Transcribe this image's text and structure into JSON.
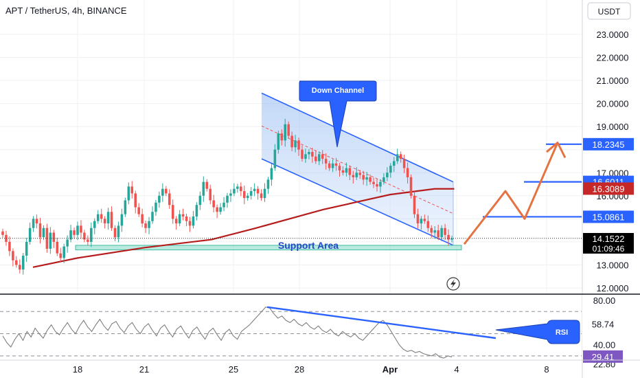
{
  "header": {
    "title": "APT / TetherUS, 4h, BINANCE"
  },
  "currency_button": "USDT",
  "price_axis": {
    "ticks": [
      "23.0000",
      "22.0000",
      "21.0000",
      "20.0000",
      "19.0000",
      "17.0000",
      "16.0000",
      "13.0000",
      "12.0000"
    ],
    "tick_values": [
      23,
      22,
      21,
      20,
      19,
      17,
      16,
      13,
      12
    ]
  },
  "price_tags": [
    {
      "label": "18.2345",
      "value": 18.2345,
      "color": "#2962ff"
    },
    {
      "label": "16.6011",
      "value": 16.6011,
      "color": "#2962ff"
    },
    {
      "label": "16.3089",
      "value": 16.3089,
      "color": "#c62828"
    },
    {
      "label": "15.0861",
      "value": 15.0861,
      "color": "#2962ff"
    }
  ],
  "last_price": {
    "label": "14.1522",
    "value": 14.1522,
    "countdown": "01:09:46",
    "color": "#000000"
  },
  "annotations": {
    "down_channel": "Down Channel",
    "support_area": "Support Area",
    "rsi_callout": "RSI"
  },
  "rsi_axis": {
    "ticks": [
      "80.00",
      "40.00",
      "22.80"
    ],
    "tick_values": [
      80,
      40,
      22.8
    ],
    "tags": [
      {
        "label": "58.74",
        "value": 58.74,
        "color": "#ffffff"
      },
      {
        "label": "29.41",
        "value": 29.41,
        "color": "#7e57c2"
      }
    ]
  },
  "time_axis": {
    "labels": [
      "18",
      "21",
      "25",
      "28",
      "Apr",
      "4",
      "8"
    ]
  },
  "colors": {
    "up": "#26a69a",
    "down": "#ef5350",
    "ma": "#b71c1c",
    "channel": "#2962ff",
    "projection": "#e57342",
    "rsi": "#7e7e7e"
  },
  "chart_data": {
    "type": "candlestick",
    "title": "APT / TetherUS, 4h, BINANCE",
    "y_unit": "USDT",
    "ylim": [
      11.9,
      23.8
    ],
    "close_series": [
      14.3,
      14.0,
      13.6,
      13.2,
      13.0,
      12.8,
      13.4,
      14.0,
      14.6,
      15.0,
      14.8,
      14.2,
      14.6,
      13.7,
      14.4,
      14.0,
      13.5,
      13.3,
      13.8,
      14.1,
      14.5,
      14.3,
      14.7,
      14.4,
      14.1,
      14.0,
      14.6,
      14.9,
      15.2,
      15.0,
      14.8,
      15.3,
      14.6,
      14.2,
      14.7,
      15.2,
      15.8,
      16.4,
      16.1,
      15.5,
      15.2,
      14.8,
      14.6,
      14.9,
      15.3,
      15.7,
      16.0,
      16.3,
      16.1,
      15.6,
      15.0,
      14.8,
      15.2,
      15.1,
      14.9,
      14.7,
      15.1,
      15.6,
      16.0,
      16.6,
      16.3,
      15.8,
      15.5,
      15.3,
      15.5,
      15.7,
      16.0,
      16.1,
      16.3,
      16.4,
      16.2,
      15.9,
      16.0,
      16.2,
      16.3,
      16.1,
      15.9,
      16.3,
      16.7,
      17.2,
      18.0,
      18.7,
      18.4,
      19.1,
      18.6,
      18.1,
      18.4,
      18.0,
      17.6,
      17.8,
      17.9,
      17.7,
      17.5,
      17.8,
      17.6,
      17.4,
      17.2,
      17.4,
      17.3,
      17.1,
      17.0,
      17.2,
      16.9,
      16.8,
      17.0,
      16.9,
      16.7,
      16.8,
      16.6,
      16.5,
      16.4,
      16.6,
      16.8,
      17.0,
      17.3,
      17.5,
      17.8,
      17.6,
      17.2,
      16.8,
      16.0,
      15.2,
      14.8,
      15.0,
      14.9,
      14.6,
      14.4,
      14.5,
      14.2,
      14.6,
      14.3,
      14.1,
      14.15
    ],
    "ma200": [
      {
        "x": "day 16",
        "y": 12.9
      },
      {
        "x": "day 18",
        "y": 13.3
      },
      {
        "x": "day 21",
        "y": 13.75
      },
      {
        "x": "day 24",
        "y": 14.1
      },
      {
        "x": "day 26",
        "y": 14.6
      },
      {
        "x": "day 29",
        "y": 15.4
      },
      {
        "x": "Apr 1",
        "y": 16.05
      },
      {
        "x": "Apr 3",
        "y": 16.3
      },
      {
        "x": "Apr 4",
        "y": 16.3
      }
    ],
    "channel": {
      "upper_start": 20.45,
      "upper_end": 16.6,
      "lower_start": 17.6,
      "lower_end": 13.85
    },
    "support_area": [
      13.65,
      13.85
    ],
    "levels": [
      18.2345,
      16.6011,
      16.3089,
      15.0861
    ],
    "last_price": 14.1522,
    "projection_path": [
      {
        "x": "Apr 4",
        "y": 13.9
      },
      {
        "x": "Apr 6",
        "y": 16.2
      },
      {
        "x": "Apr 7",
        "y": 15.0
      },
      {
        "x": "Apr 8",
        "y": 18.3
      },
      {
        "x": "Apr 9",
        "y": 17.7
      }
    ],
    "rsi": {
      "ylim": [
        20,
        85
      ],
      "last": 29.41,
      "values": [
        48,
        42,
        38,
        45,
        50,
        44,
        52,
        47,
        55,
        50,
        46,
        53,
        58,
        52,
        49,
        55,
        60,
        54,
        50,
        57,
        62,
        56,
        52,
        58,
        63,
        57,
        53,
        59,
        61,
        55,
        51,
        57,
        60,
        54,
        50,
        56,
        59,
        53,
        48,
        55,
        58,
        52,
        47,
        54,
        57,
        51,
        46,
        53,
        56,
        50,
        45,
        52,
        55,
        49,
        44,
        51,
        54,
        48,
        45,
        52,
        55,
        58,
        62,
        66,
        70,
        74,
        73,
        68,
        64,
        66,
        62,
        60,
        63,
        59,
        57,
        60,
        56,
        54,
        57,
        53,
        51,
        54,
        50,
        48,
        52,
        49,
        47,
        50,
        46,
        44,
        48,
        52,
        56,
        60,
        62,
        58,
        52,
        46,
        40,
        36,
        34,
        35,
        33,
        34,
        32,
        31,
        30,
        32,
        29,
        28,
        30,
        29
      ]
    }
  }
}
